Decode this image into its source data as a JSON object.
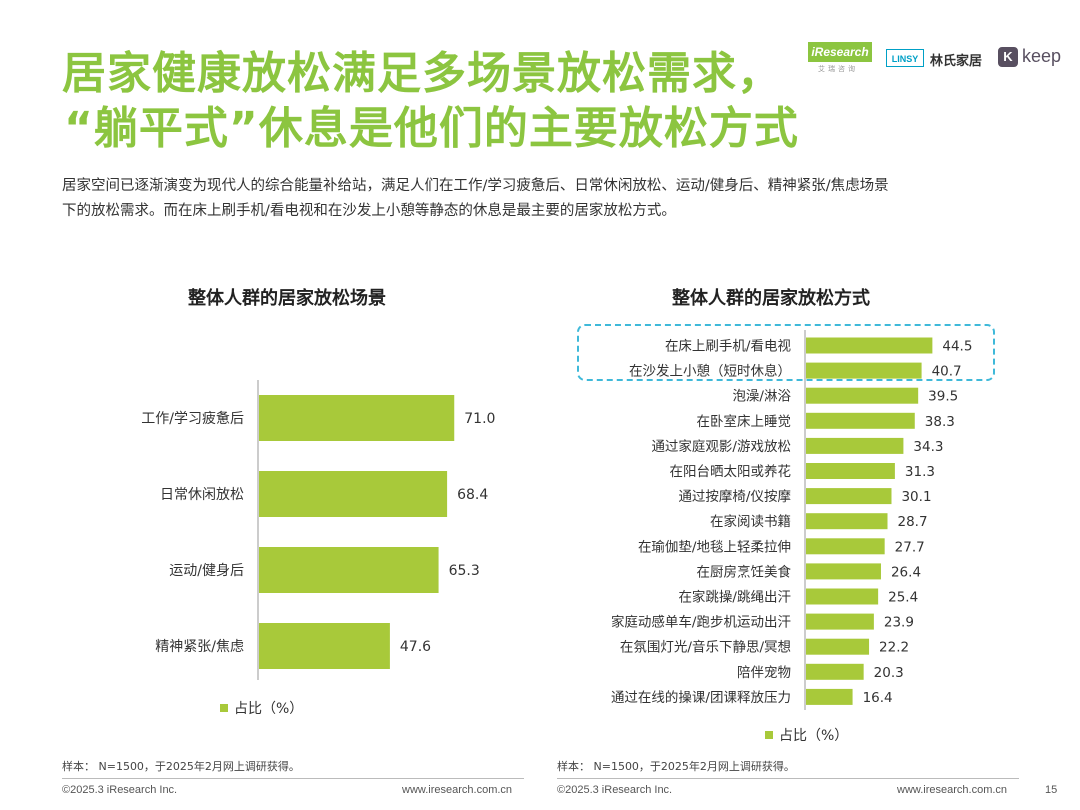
{
  "header": {
    "title_line1": "居家健康放松满足多场景放松需求，",
    "title_line2": "“躺平式”休息是他们的主要放松方式",
    "lead_line1": "居家空间已逐渐演变为现代人的综合能量补给站，满足人们在工作/学习疲惫后、日常休闲放松、运动/健身后、精神紧张/焦虑场景",
    "lead_line2": "下的放松需求。而在床上刷手机/看电视和在沙发上小憩等静态的休息是最主要的居家放松方式。"
  },
  "logos": {
    "iresearch": "iResearch",
    "iresearch_sub": "艾瑞咨询",
    "linsy": "LINSY",
    "linsy_cn": "林氏家居",
    "keep_mark": "K",
    "keep": "keep"
  },
  "colors": {
    "accent": "#8cc540",
    "bar": "#a8c93a",
    "highlight": "#3fb9d9"
  },
  "chart_data": [
    {
      "type": "bar",
      "orientation": "horizontal",
      "title": "整体人群的居家放松场景",
      "categories": [
        "工作/学习疲惫后",
        "日常休闲放松",
        "运动/健身后",
        "精神紧张/焦虑"
      ],
      "values": [
        71.0,
        68.4,
        65.3,
        47.6
      ],
      "legend": "占比（%）",
      "note": "样本：  N=1500，于2025年2月网上调研获得。"
    },
    {
      "type": "bar",
      "orientation": "horizontal",
      "title": "整体人群的居家放松方式",
      "categories": [
        "在床上刷手机/看电视",
        "在沙发上小憩（短时休息）",
        "泡澡/淋浴",
        "在卧室床上睡觉",
        "通过家庭观影/游戏放松",
        "在阳台晒太阳或养花",
        "通过按摩椅/仪按摩",
        "在家阅读书籍",
        "在瑜伽垫/地毯上轻柔拉伸",
        "在厨房烹饪美食",
        "在家跳操/跳绳出汗",
        "家庭动感单车/跑步机运动出汗",
        "在氛围灯光/音乐下静思/冥想",
        "陪伴宠物",
        "通过在线的操课/团课释放压力"
      ],
      "values": [
        44.5,
        40.7,
        39.5,
        38.3,
        34.3,
        31.3,
        30.1,
        28.7,
        27.7,
        26.4,
        25.4,
        23.9,
        22.2,
        20.3,
        16.4
      ],
      "highlighted_count": 2,
      "legend": "占比（%）",
      "note": "样本：  N=1500，于2025年2月网上调研获得。"
    }
  ],
  "footer": {
    "copyright_left": "©2025.3 iResearch Inc.",
    "url_left": "www.iresearch.com.cn",
    "copyright_right": "©2025.3 iResearch Inc.",
    "url_right": "www.iresearch.com.cn",
    "page_number": "15"
  }
}
